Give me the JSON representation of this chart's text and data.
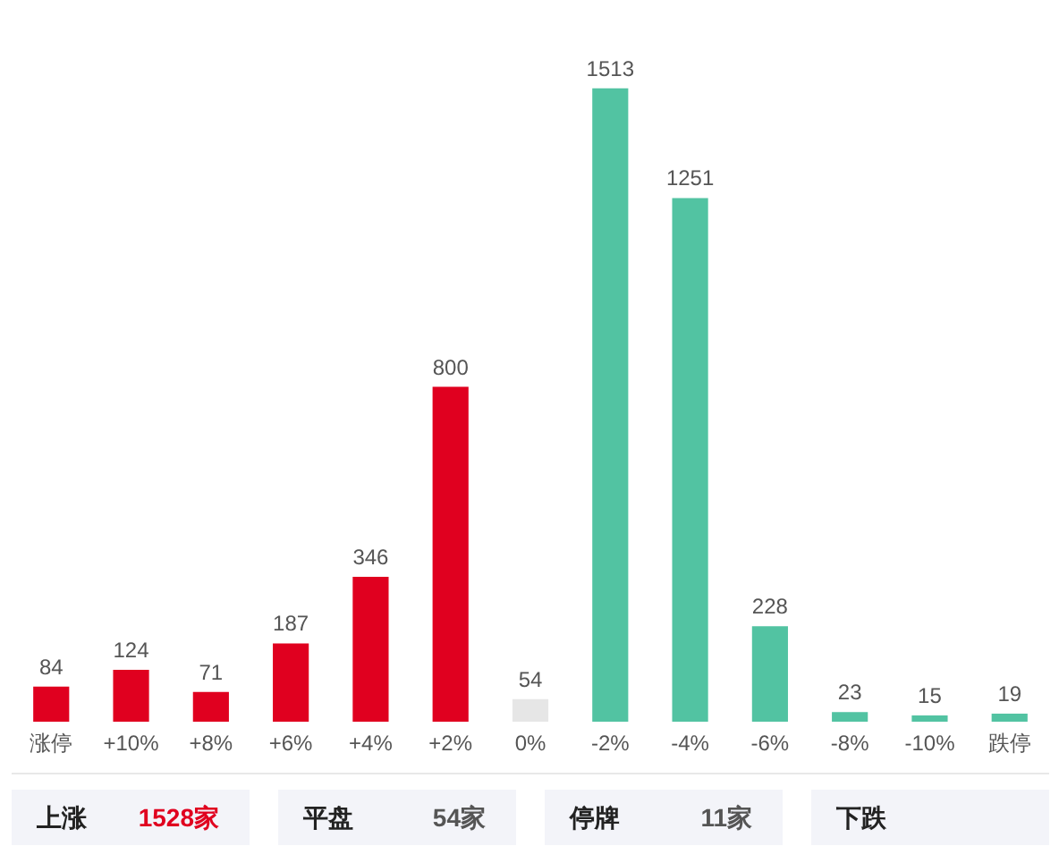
{
  "chart_data": {
    "type": "bar",
    "categories": [
      "涨停",
      "+10%",
      "+8%",
      "+6%",
      "+4%",
      "+2%",
      "0%",
      "-2%",
      "-4%",
      "-6%",
      "-8%",
      "-10%",
      "跌停"
    ],
    "values": [
      84,
      124,
      71,
      187,
      346,
      800,
      54,
      1513,
      1251,
      228,
      23,
      15,
      19
    ],
    "colors": [
      "#e0001f",
      "#e0001f",
      "#e0001f",
      "#e0001f",
      "#e0001f",
      "#e0001f",
      "#e6e6e6",
      "#52c3a2",
      "#52c3a2",
      "#52c3a2",
      "#52c3a2",
      "#52c3a2",
      "#52c3a2"
    ],
    "data_labels": true,
    "annotations": [
      "上涨",
      "1528家",
      "平盘",
      "54家",
      "停牌",
      "11家",
      "下跌"
    ]
  }
}
